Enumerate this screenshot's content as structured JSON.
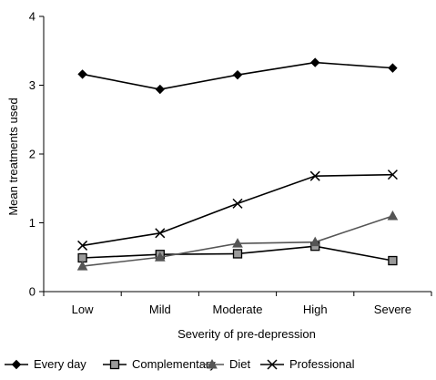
{
  "chart_data": {
    "type": "line",
    "title": "",
    "xlabel": "Severity of pre-depression",
    "ylabel": "Mean treatments used",
    "categories": [
      "Low",
      "Mild",
      "Moderate",
      "High",
      "Severe"
    ],
    "ylim": [
      0,
      4
    ],
    "yticks": [
      "0",
      "1",
      "2",
      "3",
      "4"
    ],
    "grid": false,
    "legend_position": "bottom",
    "series": [
      {
        "name": "Every day",
        "marker": "diamond",
        "color": "#000000",
        "marker_fill": "#000000",
        "values": [
          3.16,
          2.94,
          3.15,
          3.33,
          3.25
        ]
      },
      {
        "name": "Complementary",
        "marker": "square",
        "color": "#000000",
        "marker_fill": "#9a9a9a",
        "values": [
          0.49,
          0.54,
          0.55,
          0.66,
          0.45
        ]
      },
      {
        "name": "Diet",
        "marker": "triangle",
        "color": "#555555",
        "marker_fill": "#555555",
        "values": [
          0.37,
          0.5,
          0.7,
          0.72,
          1.1
        ]
      },
      {
        "name": "Professional",
        "marker": "x",
        "color": "#000000",
        "marker_fill": "#000000",
        "values": [
          0.67,
          0.85,
          1.28,
          1.68,
          1.7
        ]
      }
    ]
  }
}
